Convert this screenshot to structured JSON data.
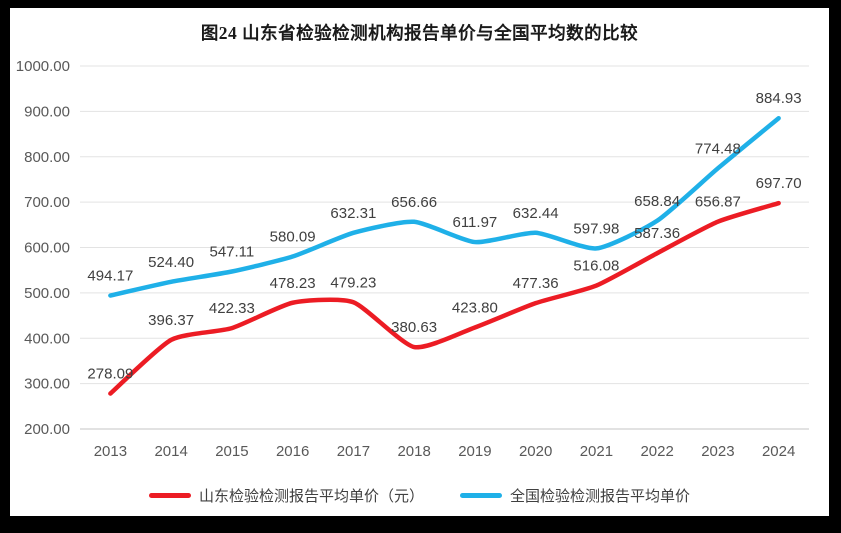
{
  "frame": {
    "border_color": "#000000",
    "canvas_color": "#ffffff"
  },
  "chart_data": {
    "type": "line",
    "title": "图24  山东省检验检测机构报告单价与全国平均数的比较",
    "categories": [
      "2013",
      "2014",
      "2015",
      "2016",
      "2017",
      "2018",
      "2019",
      "2020",
      "2021",
      "2022",
      "2023",
      "2024"
    ],
    "series": [
      {
        "name": "山东检验检测报告平均单价（元）",
        "color": "#ec1c24",
        "values": [
          278.09,
          396.37,
          422.33,
          478.23,
          479.23,
          380.63,
          423.8,
          477.36,
          516.08,
          587.36,
          656.87,
          697.7
        ]
      },
      {
        "name": "全国检验检测报告平均单价",
        "color": "#1fb0e8",
        "values": [
          494.17,
          524.4,
          547.11,
          580.09,
          632.31,
          656.66,
          611.97,
          632.44,
          597.98,
          658.84,
          774.48,
          884.93
        ]
      }
    ],
    "xlabel": "",
    "ylabel": "",
    "ylim": [
      200,
      1000
    ],
    "ytick_step": 100,
    "ytick_decimals": 2,
    "data_labels": true,
    "data_label_decimals": 2,
    "grid": true,
    "legend_position": "bottom",
    "colors": {
      "grid": "#e3e3e3",
      "axis_line": "#c6c6c6",
      "tick_text": "#595959",
      "data_label_text": "#404040",
      "title_text": "#1a1a1a"
    }
  }
}
